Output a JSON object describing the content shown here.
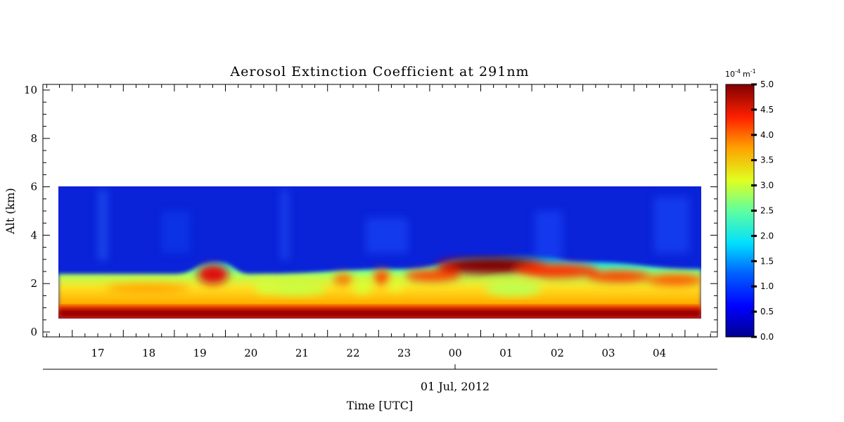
{
  "chart_data": {
    "type": "heatmap",
    "title": "Aerosol Extinction Coefficient at 291nm",
    "xlabel": "Time [UTC]",
    "ylabel": "Alt (km)",
    "date_label": "01 Jul, 2012",
    "x_ticks": [
      "17",
      "18",
      "19",
      "20",
      "21",
      "22",
      "23",
      "00",
      "01",
      "02",
      "03",
      "04"
    ],
    "y_ticks": [
      "0",
      "2",
      "4",
      "6",
      "8",
      "10"
    ],
    "ylim": [
      0,
      10.3
    ],
    "colorbar": {
      "unit_base": "10",
      "unit_exp": "-4",
      "unit_m": "m",
      "unit_m_exp": "-1",
      "range": [
        0.0,
        5.0
      ],
      "ticks": [
        "0.0",
        "0.5",
        "1.0",
        "1.5",
        "2.0",
        "2.5",
        "3.0",
        "3.5",
        "4.0",
        "4.5",
        "5.0"
      ]
    },
    "description_data": {
      "data_top_km": 6.0,
      "data_bottom_km": 0.55,
      "surface_band_km": [
        0.55,
        1.0
      ],
      "surface_band_value": 5.0,
      "boundary_layer_top_km": [
        {
          "time": "16:15",
          "alt": 2.4
        },
        {
          "time": "18:30",
          "alt": 2.4
        },
        {
          "time": "19:20",
          "alt": 2.9
        },
        {
          "time": "20:00",
          "alt": 2.4
        },
        {
          "time": "23:00",
          "alt": 2.6
        },
        {
          "time": "00:30",
          "alt": 3.1
        },
        {
          "time": "01:30",
          "alt": 3.2
        },
        {
          "time": "02:30",
          "alt": 2.9
        },
        {
          "time": "04:50",
          "alt": 2.6
        }
      ],
      "high_value_region": {
        "time_start": "23:30",
        "time_end": "02:00",
        "alt_range_km": [
          2.3,
          3.2
        ],
        "value": 5.0
      }
    }
  }
}
